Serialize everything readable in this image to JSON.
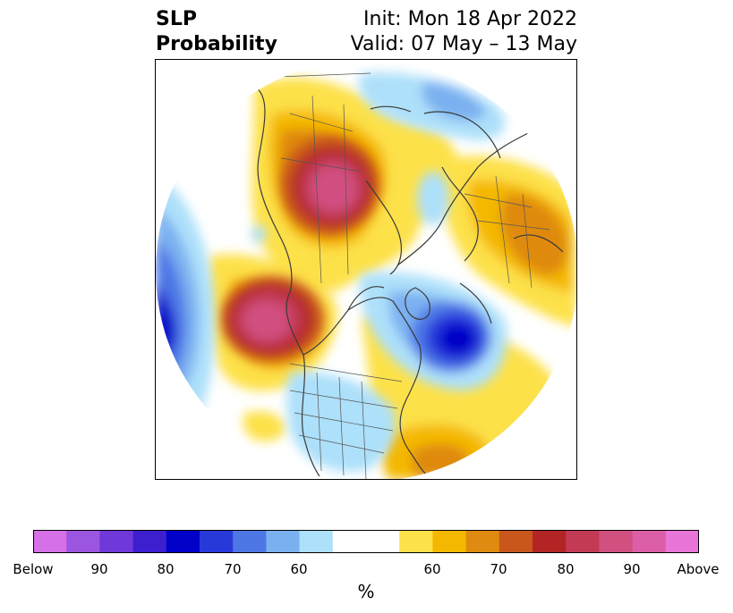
{
  "title": {
    "left_line1": "SLP",
    "left_line2": "Probability",
    "init": "Init: Mon 18 Apr 2022",
    "valid": "Valid: 07 May – 13 May"
  },
  "colorbar": {
    "colors": [
      "#d670e6",
      "#9c55e0",
      "#6f38d8",
      "#3d1fd0",
      "#0000c8",
      "#2839da",
      "#4e77e6",
      "#7bb0f0",
      "#ade0fa",
      "#ffffff",
      "#ffffff",
      "#fde14a",
      "#f4b800",
      "#df8a10",
      "#c9561a",
      "#b32525",
      "#c33a55",
      "#d05080",
      "#dc5ea6",
      "#e876d8"
    ],
    "tick_labels": [
      "Below",
      "90",
      "80",
      "70",
      "60",
      "60",
      "70",
      "80",
      "90",
      "Above"
    ],
    "unit": "%"
  },
  "map": {
    "projection": "north-polar-stereographic",
    "features": [
      "coastlines",
      "country-borders",
      "us-state-borders"
    ],
    "highlights": [
      {
        "name": "below-normal-north-atlantic",
        "category": "below",
        "peak_percent": 85
      },
      {
        "name": "below-normal-north-pacific-west",
        "category": "below",
        "peak_percent": 80
      },
      {
        "name": "below-normal-arctic-ocean",
        "category": "below",
        "peak_percent": 60
      },
      {
        "name": "above-normal-alaska-bering",
        "category": "above",
        "peak_percent": 90
      },
      {
        "name": "above-normal-siberia",
        "category": "above",
        "peak_percent": 90
      },
      {
        "name": "above-normal-europe",
        "category": "above",
        "peak_percent": 70
      },
      {
        "name": "above-normal-western-atlantic",
        "category": "above",
        "peak_percent": 75
      }
    ]
  }
}
